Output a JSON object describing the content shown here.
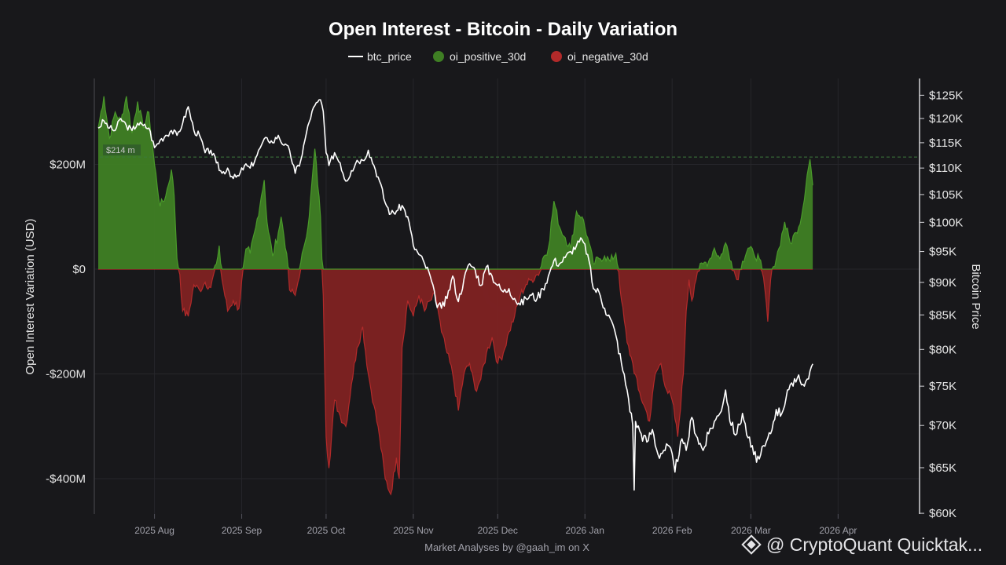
{
  "chart_data": {
    "type": "area",
    "title": "Open Interest - Bitcoin - Daily Variation",
    "legend": [
      "btc_price",
      "oi_positive_30d",
      "oi_negative_30d"
    ],
    "ylabel_left": "Open Interest Variation (USD)",
    "ylabel_right": "Bitcoin Price",
    "ylim_left": [
      -470,
      360
    ],
    "left_ticks": [
      {
        "value": 200,
        "label": "$200M"
      },
      {
        "value": 0,
        "label": "$0"
      },
      {
        "value": -200,
        "label": "-$200M"
      },
      {
        "value": -400,
        "label": "-$400M"
      }
    ],
    "right_ticks": [
      {
        "value": 125000,
        "label": "$125K"
      },
      {
        "value": 120000,
        "label": "$120K"
      },
      {
        "value": 115000,
        "label": "$115K"
      },
      {
        "value": 110000,
        "label": "$110K"
      },
      {
        "value": 105000,
        "label": "$105K"
      },
      {
        "value": 100000,
        "label": "$100K"
      },
      {
        "value": 95000,
        "label": "$95K"
      },
      {
        "value": 90000,
        "label": "$90K"
      },
      {
        "value": 85000,
        "label": "$85K"
      },
      {
        "value": 80000,
        "label": "$80K"
      },
      {
        "value": 75000,
        "label": "$75K"
      },
      {
        "value": 70000,
        "label": "$70K"
      },
      {
        "value": 65000,
        "label": "$65K"
      },
      {
        "value": 60000,
        "label": "$60K"
      }
    ],
    "x_ticks": [
      {
        "day": 0,
        "label": "2025 Aug"
      },
      {
        "day": 31,
        "label": "2025 Sep"
      },
      {
        "day": 61,
        "label": "2025 Oct"
      },
      {
        "day": 92,
        "label": "2025 Nov"
      },
      {
        "day": 122,
        "label": "2025 Dec"
      },
      {
        "day": 153,
        "label": "2026 Jan"
      },
      {
        "day": 184,
        "label": "2026 Feb"
      },
      {
        "day": 212,
        "label": "2026 Mar"
      },
      {
        "day": 243,
        "label": "2026 Apr"
      }
    ],
    "x_range_days": [
      -20,
      270
    ],
    "threshold": {
      "value": 214,
      "label": "$214 m"
    },
    "oi_keypoints": [
      [
        -20,
        270
      ],
      [
        -18,
        330
      ],
      [
        -16,
        250
      ],
      [
        -14,
        300
      ],
      [
        -12,
        280
      ],
      [
        -10,
        330
      ],
      [
        -8,
        260
      ],
      [
        -6,
        320
      ],
      [
        -4,
        270
      ],
      [
        -2,
        300
      ],
      [
        0,
        200
      ],
      [
        2,
        120
      ],
      [
        4,
        140
      ],
      [
        6,
        190
      ],
      [
        7,
        140
      ],
      [
        8,
        20
      ],
      [
        9,
        -10
      ],
      [
        10,
        -80
      ],
      [
        12,
        -90
      ],
      [
        14,
        -30
      ],
      [
        16,
        -40
      ],
      [
        18,
        -25
      ],
      [
        20,
        -35
      ],
      [
        22,
        10
      ],
      [
        23,
        45
      ],
      [
        24,
        -20
      ],
      [
        26,
        -80
      ],
      [
        28,
        -60
      ],
      [
        30,
        -75
      ],
      [
        32,
        20
      ],
      [
        33,
        40
      ],
      [
        34,
        30
      ],
      [
        36,
        80
      ],
      [
        38,
        140
      ],
      [
        39,
        170
      ],
      [
        40,
        90
      ],
      [
        42,
        25
      ],
      [
        44,
        70
      ],
      [
        45,
        100
      ],
      [
        47,
        30
      ],
      [
        48,
        -40
      ],
      [
        50,
        -50
      ],
      [
        51,
        -25
      ],
      [
        53,
        40
      ],
      [
        55,
        100
      ],
      [
        57,
        230
      ],
      [
        59,
        100
      ],
      [
        60,
        -50
      ],
      [
        61,
        -320
      ],
      [
        62,
        -380
      ],
      [
        64,
        -250
      ],
      [
        66,
        -280
      ],
      [
        68,
        -300
      ],
      [
        70,
        -220
      ],
      [
        72,
        -150
      ],
      [
        74,
        -110
      ],
      [
        76,
        -200
      ],
      [
        78,
        -260
      ],
      [
        80,
        -320
      ],
      [
        82,
        -400
      ],
      [
        84,
        -430
      ],
      [
        86,
        -360
      ],
      [
        87,
        -400
      ],
      [
        88,
        -150
      ],
      [
        90,
        -60
      ],
      [
        92,
        -90
      ],
      [
        94,
        -50
      ],
      [
        96,
        -80
      ],
      [
        98,
        -60
      ],
      [
        100,
        -50
      ],
      [
        102,
        -120
      ],
      [
        104,
        -160
      ],
      [
        106,
        -200
      ],
      [
        108,
        -270
      ],
      [
        110,
        -200
      ],
      [
        112,
        -180
      ],
      [
        114,
        -230
      ],
      [
        116,
        -210
      ],
      [
        118,
        -160
      ],
      [
        120,
        -130
      ],
      [
        122,
        -180
      ],
      [
        124,
        -160
      ],
      [
        126,
        -120
      ],
      [
        128,
        -90
      ],
      [
        130,
        -50
      ],
      [
        132,
        -30
      ],
      [
        134,
        -20
      ],
      [
        136,
        -10
      ],
      [
        137,
        -5
      ],
      [
        138,
        20
      ],
      [
        140,
        40
      ],
      [
        142,
        130
      ],
      [
        144,
        80
      ],
      [
        146,
        60
      ],
      [
        148,
        40
      ],
      [
        150,
        110
      ],
      [
        152,
        100
      ],
      [
        154,
        60
      ],
      [
        156,
        10
      ],
      [
        158,
        20
      ],
      [
        160,
        25
      ],
      [
        162,
        15
      ],
      [
        164,
        30
      ],
      [
        165,
        -5
      ],
      [
        166,
        -60
      ],
      [
        168,
        -140
      ],
      [
        170,
        -180
      ],
      [
        172,
        -230
      ],
      [
        174,
        -260
      ],
      [
        176,
        -290
      ],
      [
        178,
        -200
      ],
      [
        180,
        -180
      ],
      [
        182,
        -230
      ],
      [
        184,
        -250
      ],
      [
        186,
        -320
      ],
      [
        188,
        -200
      ],
      [
        189,
        -80
      ],
      [
        190,
        -20
      ],
      [
        191,
        -60
      ],
      [
        192,
        -30
      ],
      [
        193,
        -5
      ],
      [
        195,
        10
      ],
      [
        197,
        15
      ],
      [
        199,
        40
      ],
      [
        201,
        20
      ],
      [
        203,
        50
      ],
      [
        205,
        15
      ],
      [
        207,
        -20
      ],
      [
        209,
        15
      ],
      [
        211,
        40
      ],
      [
        213,
        30
      ],
      [
        215,
        20
      ],
      [
        216,
        -5
      ],
      [
        217,
        -40
      ],
      [
        218,
        -100
      ],
      [
        219,
        -20
      ],
      [
        220,
        5
      ],
      [
        222,
        40
      ],
      [
        224,
        90
      ],
      [
        226,
        50
      ],
      [
        228,
        70
      ],
      [
        230,
        100
      ],
      [
        232,
        180
      ],
      [
        233,
        210
      ],
      [
        234,
        160
      ]
    ],
    "btc_keypoints": [
      [
        -20,
        118000
      ],
      [
        -18,
        119500
      ],
      [
        -16,
        118000
      ],
      [
        -14,
        117500
      ],
      [
        -12,
        120000
      ],
      [
        -10,
        118500
      ],
      [
        -8,
        117500
      ],
      [
        -6,
        119000
      ],
      [
        -4,
        118500
      ],
      [
        -2,
        118000
      ],
      [
        0,
        114000
      ],
      [
        2,
        115500
      ],
      [
        4,
        116500
      ],
      [
        6,
        117500
      ],
      [
        8,
        116500
      ],
      [
        10,
        119000
      ],
      [
        12,
        122500
      ],
      [
        14,
        117500
      ],
      [
        16,
        116500
      ],
      [
        18,
        113000
      ],
      [
        20,
        113500
      ],
      [
        22,
        111000
      ],
      [
        24,
        109000
      ],
      [
        26,
        110000
      ],
      [
        28,
        108000
      ],
      [
        30,
        108500
      ],
      [
        32,
        110500
      ],
      [
        34,
        110000
      ],
      [
        36,
        112000
      ],
      [
        38,
        114500
      ],
      [
        40,
        116000
      ],
      [
        42,
        115000
      ],
      [
        44,
        116500
      ],
      [
        46,
        114500
      ],
      [
        48,
        113500
      ],
      [
        50,
        109000
      ],
      [
        52,
        111500
      ],
      [
        54,
        117000
      ],
      [
        56,
        121500
      ],
      [
        58,
        123500
      ],
      [
        59,
        124000
      ],
      [
        60,
        121500
      ],
      [
        61,
        113000
      ],
      [
        62,
        110500
      ],
      [
        64,
        113000
      ],
      [
        66,
        111000
      ],
      [
        68,
        107500
      ],
      [
        70,
        109500
      ],
      [
        72,
        111500
      ],
      [
        74,
        111500
      ],
      [
        76,
        113500
      ],
      [
        78,
        110500
      ],
      [
        80,
        107500
      ],
      [
        82,
        103500
      ],
      [
        84,
        101500
      ],
      [
        86,
        102000
      ],
      [
        88,
        103000
      ],
      [
        90,
        101000
      ],
      [
        92,
        96000
      ],
      [
        94,
        94500
      ],
      [
        96,
        93000
      ],
      [
        98,
        91000
      ],
      [
        100,
        87000
      ],
      [
        102,
        86000
      ],
      [
        104,
        87500
      ],
      [
        106,
        91000
      ],
      [
        108,
        87000
      ],
      [
        110,
        90500
      ],
      [
        112,
        93000
      ],
      [
        114,
        92000
      ],
      [
        116,
        89500
      ],
      [
        118,
        92500
      ],
      [
        120,
        91000
      ],
      [
        122,
        89500
      ],
      [
        124,
        88500
      ],
      [
        126,
        89000
      ],
      [
        128,
        87500
      ],
      [
        130,
        86500
      ],
      [
        132,
        87500
      ],
      [
        134,
        88000
      ],
      [
        136,
        87500
      ],
      [
        138,
        89000
      ],
      [
        140,
        91000
      ],
      [
        142,
        93500
      ],
      [
        144,
        93000
      ],
      [
        146,
        94000
      ],
      [
        148,
        95000
      ],
      [
        150,
        96000
      ],
      [
        152,
        97000
      ],
      [
        154,
        94500
      ],
      [
        156,
        89000
      ],
      [
        158,
        88500
      ],
      [
        160,
        86000
      ],
      [
        162,
        84500
      ],
      [
        164,
        82000
      ],
      [
        166,
        78000
      ],
      [
        168,
        74500
      ],
      [
        170,
        70000
      ],
      [
        170.5,
        62500
      ],
      [
        171,
        70500
      ],
      [
        173,
        69000
      ],
      [
        175,
        68000
      ],
      [
        177,
        69500
      ],
      [
        179,
        66500
      ],
      [
        181,
        67000
      ],
      [
        183,
        67500
      ],
      [
        185,
        64500
      ],
      [
        187,
        68000
      ],
      [
        189,
        67000
      ],
      [
        191,
        71000
      ],
      [
        193,
        68500
      ],
      [
        195,
        67000
      ],
      [
        197,
        69000
      ],
      [
        199,
        70500
      ],
      [
        201,
        71500
      ],
      [
        203,
        74500
      ],
      [
        205,
        70000
      ],
      [
        207,
        69000
      ],
      [
        209,
        71500
      ],
      [
        211,
        68500
      ],
      [
        213,
        66500
      ],
      [
        215,
        66000
      ],
      [
        217,
        67500
      ],
      [
        219,
        69000
      ],
      [
        221,
        72000
      ],
      [
        223,
        71500
      ],
      [
        225,
        74500
      ],
      [
        227,
        75000
      ],
      [
        229,
        76500
      ],
      [
        231,
        75000
      ],
      [
        233,
        77000
      ],
      [
        234,
        78000
      ]
    ]
  },
  "footer": {
    "credit": "Market Analyses by @gaah_im on X",
    "brand": "@ CryptoQuant Quicktak..."
  },
  "colors": {
    "background": "#18181b",
    "positive": "#3f7f24",
    "positive_line": "#4a9a2a",
    "negative": "#7f2222",
    "negative_line": "#b22a2a",
    "price": "#ffffff",
    "grid": "#26262b",
    "threshold": "#3d7a3d"
  }
}
